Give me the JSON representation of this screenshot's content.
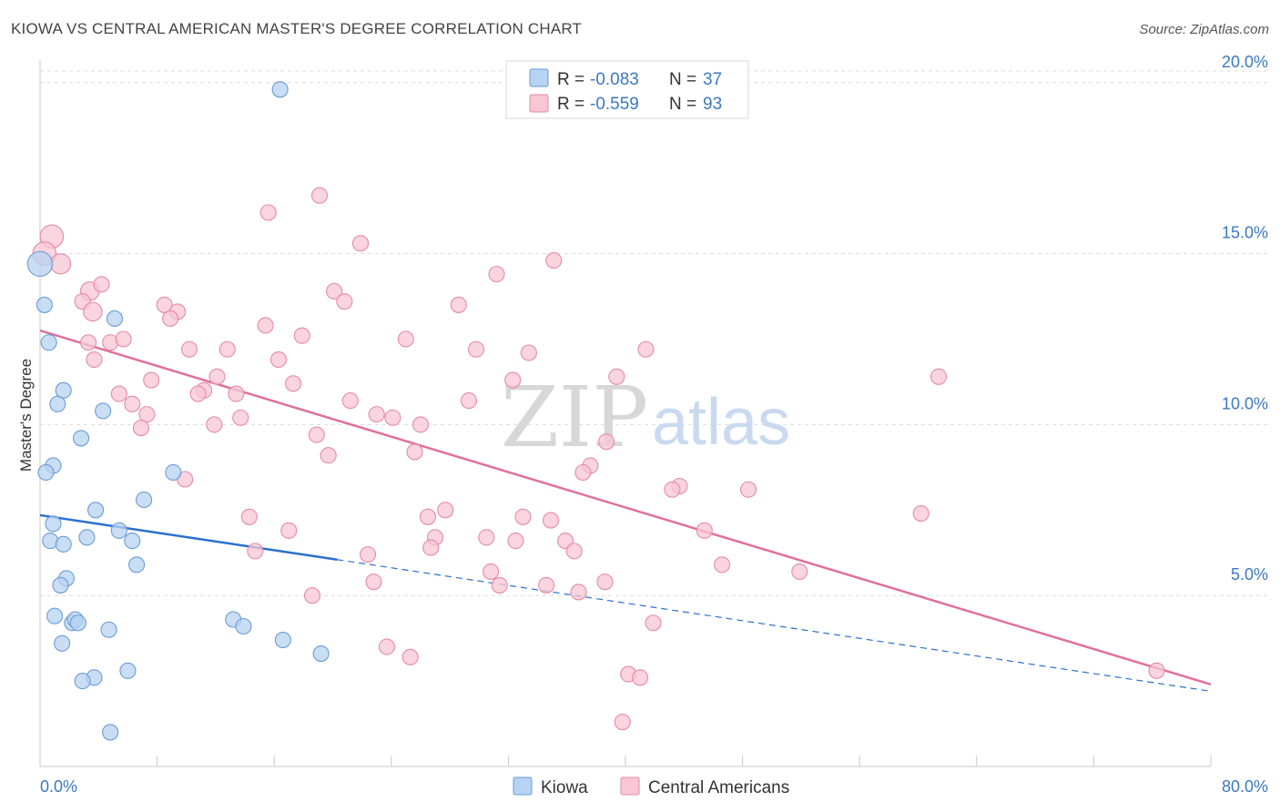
{
  "header": {
    "title": "KIOWA VS CENTRAL AMERICAN MASTER'S DEGREE CORRELATION CHART",
    "source": "Source: ZipAtlas.com"
  },
  "watermark": {
    "zip": "ZIP",
    "atlas": "atlas"
  },
  "legend_top": {
    "r_label": "R = ",
    "n_label": "N = ",
    "rows": [
      {
        "r": "-0.083",
        "n": "37"
      },
      {
        "r": "-0.559",
        "n": "93"
      }
    ]
  },
  "colors": {
    "kiowa_fill": "#b7d3f2",
    "kiowa_stroke": "#6a9bd6",
    "kiowa_line": "#2a6fcf",
    "central_fill": "#f8c6d4",
    "central_stroke": "#e58aa8",
    "central_line": "#e0709a"
  },
  "chart_data": {
    "type": "scatter",
    "title": "KIOWA VS CENTRAL AMERICAN MASTER'S DEGREE CORRELATION CHART",
    "xlabel": "",
    "ylabel": "Master's Degree",
    "xlim": [
      0,
      80
    ],
    "ylim": [
      0,
      20.5
    ],
    "x_tick_labels": [
      "0.0%",
      "80.0%"
    ],
    "y_ticks": [
      5,
      10,
      15,
      20
    ],
    "y_tick_labels": [
      "5.0%",
      "10.0%",
      "15.0%",
      "20.0%"
    ],
    "grid": true,
    "legend": [
      "Kiowa",
      "Central Americans"
    ],
    "series": [
      {
        "name": "Kiowa",
        "r": -0.083,
        "n": 37,
        "trend": {
          "x0": 0,
          "y0": 7.35,
          "x1": 20.3,
          "y1": 6.05,
          "dash_to_x": 80,
          "dash_to_y": 2.2
        },
        "points": [
          {
            "x": 0.0,
            "y": 14.7,
            "s": 1.6
          },
          {
            "x": 16.4,
            "y": 19.8
          },
          {
            "x": 0.3,
            "y": 13.5
          },
          {
            "x": 5.1,
            "y": 13.1
          },
          {
            "x": 0.6,
            "y": 12.4
          },
          {
            "x": 1.6,
            "y": 11.0
          },
          {
            "x": 1.2,
            "y": 10.6
          },
          {
            "x": 4.3,
            "y": 10.4
          },
          {
            "x": 2.8,
            "y": 9.6
          },
          {
            "x": 0.9,
            "y": 8.8
          },
          {
            "x": 0.4,
            "y": 8.6
          },
          {
            "x": 9.1,
            "y": 8.6
          },
          {
            "x": 7.1,
            "y": 7.8
          },
          {
            "x": 3.8,
            "y": 7.5
          },
          {
            "x": 0.9,
            "y": 7.1
          },
          {
            "x": 5.4,
            "y": 6.9
          },
          {
            "x": 0.7,
            "y": 6.6
          },
          {
            "x": 3.2,
            "y": 6.7
          },
          {
            "x": 6.3,
            "y": 6.6
          },
          {
            "x": 1.6,
            "y": 6.5
          },
          {
            "x": 6.6,
            "y": 5.9
          },
          {
            "x": 1.8,
            "y": 5.5
          },
          {
            "x": 1.4,
            "y": 5.3
          },
          {
            "x": 1.0,
            "y": 4.4
          },
          {
            "x": 2.2,
            "y": 4.2
          },
          {
            "x": 2.4,
            "y": 4.3
          },
          {
            "x": 2.6,
            "y": 4.2
          },
          {
            "x": 13.2,
            "y": 4.3
          },
          {
            "x": 13.9,
            "y": 4.1
          },
          {
            "x": 4.7,
            "y": 4.0
          },
          {
            "x": 1.5,
            "y": 3.6
          },
          {
            "x": 16.6,
            "y": 3.7
          },
          {
            "x": 19.2,
            "y": 3.3
          },
          {
            "x": 6.0,
            "y": 2.8
          },
          {
            "x": 3.7,
            "y": 2.6
          },
          {
            "x": 2.9,
            "y": 2.5
          },
          {
            "x": 4.8,
            "y": 1.0
          }
        ]
      },
      {
        "name": "Central Americans",
        "r": -0.559,
        "n": 93,
        "trend": {
          "x0": 0,
          "y0": 12.75,
          "x1": 80,
          "y1": 2.4
        },
        "points": [
          {
            "x": 0.8,
            "y": 15.5,
            "s": 1.5
          },
          {
            "x": 0.3,
            "y": 15.0,
            "s": 1.5
          },
          {
            "x": 1.4,
            "y": 14.7,
            "s": 1.3
          },
          {
            "x": 19.1,
            "y": 16.7
          },
          {
            "x": 15.6,
            "y": 16.2
          },
          {
            "x": 21.9,
            "y": 15.3
          },
          {
            "x": 35.1,
            "y": 14.8
          },
          {
            "x": 31.2,
            "y": 14.4
          },
          {
            "x": 3.4,
            "y": 13.9,
            "s": 1.2
          },
          {
            "x": 4.2,
            "y": 14.1
          },
          {
            "x": 20.1,
            "y": 13.9
          },
          {
            "x": 2.9,
            "y": 13.6
          },
          {
            "x": 20.8,
            "y": 13.6
          },
          {
            "x": 28.6,
            "y": 13.5
          },
          {
            "x": 8.5,
            "y": 13.5
          },
          {
            "x": 9.4,
            "y": 13.3
          },
          {
            "x": 3.6,
            "y": 13.3,
            "s": 1.2
          },
          {
            "x": 8.9,
            "y": 13.1
          },
          {
            "x": 15.4,
            "y": 12.9
          },
          {
            "x": 17.9,
            "y": 12.6
          },
          {
            "x": 25.0,
            "y": 12.5
          },
          {
            "x": 4.8,
            "y": 12.4
          },
          {
            "x": 5.7,
            "y": 12.5
          },
          {
            "x": 3.3,
            "y": 12.4
          },
          {
            "x": 10.2,
            "y": 12.2
          },
          {
            "x": 12.8,
            "y": 12.2
          },
          {
            "x": 29.8,
            "y": 12.2
          },
          {
            "x": 33.4,
            "y": 12.1
          },
          {
            "x": 41.4,
            "y": 12.2
          },
          {
            "x": 3.7,
            "y": 11.9
          },
          {
            "x": 16.3,
            "y": 11.9
          },
          {
            "x": 12.1,
            "y": 11.4
          },
          {
            "x": 7.6,
            "y": 11.3
          },
          {
            "x": 39.4,
            "y": 11.4
          },
          {
            "x": 32.3,
            "y": 11.3
          },
          {
            "x": 61.4,
            "y": 11.4
          },
          {
            "x": 11.2,
            "y": 11.0
          },
          {
            "x": 17.3,
            "y": 11.2
          },
          {
            "x": 10.8,
            "y": 10.9
          },
          {
            "x": 5.4,
            "y": 10.9
          },
          {
            "x": 13.4,
            "y": 10.9
          },
          {
            "x": 21.2,
            "y": 10.7
          },
          {
            "x": 29.3,
            "y": 10.7
          },
          {
            "x": 6.3,
            "y": 10.6
          },
          {
            "x": 7.3,
            "y": 10.3
          },
          {
            "x": 23.0,
            "y": 10.3
          },
          {
            "x": 24.1,
            "y": 10.2
          },
          {
            "x": 13.7,
            "y": 10.2
          },
          {
            "x": 11.9,
            "y": 10.0
          },
          {
            "x": 6.9,
            "y": 9.9
          },
          {
            "x": 26.0,
            "y": 10.0
          },
          {
            "x": 18.9,
            "y": 9.7
          },
          {
            "x": 38.7,
            "y": 9.5
          },
          {
            "x": 25.6,
            "y": 9.2
          },
          {
            "x": 19.7,
            "y": 9.1
          },
          {
            "x": 37.6,
            "y": 8.8
          },
          {
            "x": 37.1,
            "y": 8.6
          },
          {
            "x": 9.9,
            "y": 8.4
          },
          {
            "x": 43.7,
            "y": 8.2
          },
          {
            "x": 43.2,
            "y": 8.1
          },
          {
            "x": 48.4,
            "y": 8.1
          },
          {
            "x": 27.7,
            "y": 7.5
          },
          {
            "x": 60.2,
            "y": 7.4
          },
          {
            "x": 14.3,
            "y": 7.3
          },
          {
            "x": 26.5,
            "y": 7.3
          },
          {
            "x": 33.0,
            "y": 7.3
          },
          {
            "x": 34.9,
            "y": 7.2
          },
          {
            "x": 17.0,
            "y": 6.9
          },
          {
            "x": 45.4,
            "y": 6.9
          },
          {
            "x": 27.0,
            "y": 6.7
          },
          {
            "x": 30.5,
            "y": 6.7
          },
          {
            "x": 32.5,
            "y": 6.6
          },
          {
            "x": 35.9,
            "y": 6.6
          },
          {
            "x": 26.7,
            "y": 6.4
          },
          {
            "x": 14.7,
            "y": 6.3
          },
          {
            "x": 22.4,
            "y": 6.2
          },
          {
            "x": 36.5,
            "y": 6.3
          },
          {
            "x": 46.6,
            "y": 5.9
          },
          {
            "x": 30.8,
            "y": 5.7
          },
          {
            "x": 51.9,
            "y": 5.7
          },
          {
            "x": 22.8,
            "y": 5.4
          },
          {
            "x": 38.6,
            "y": 5.4
          },
          {
            "x": 31.4,
            "y": 5.3
          },
          {
            "x": 34.6,
            "y": 5.3
          },
          {
            "x": 36.8,
            "y": 5.1
          },
          {
            "x": 18.6,
            "y": 5.0
          },
          {
            "x": 41.9,
            "y": 4.2
          },
          {
            "x": 23.7,
            "y": 3.5
          },
          {
            "x": 25.3,
            "y": 3.2
          },
          {
            "x": 76.3,
            "y": 2.8
          },
          {
            "x": 40.2,
            "y": 2.7
          },
          {
            "x": 41.0,
            "y": 2.6
          },
          {
            "x": 39.8,
            "y": 1.3
          }
        ]
      }
    ]
  }
}
